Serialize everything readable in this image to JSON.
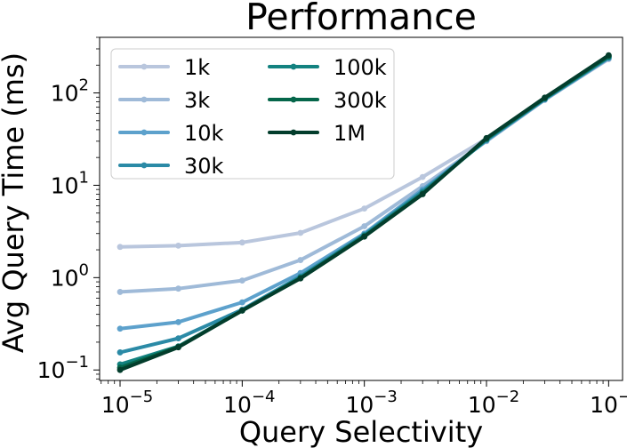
{
  "chart_data": {
    "type": "line",
    "title": "Performance",
    "xlabel": "Query Selectivity",
    "ylabel": "Avg Query Time (ms)",
    "x_scale": "log",
    "y_scale": "log",
    "xlim": [
      6.8e-06,
      0.13
    ],
    "ylim": [
      0.077,
      400
    ],
    "grid": false,
    "legend_position": "top-left",
    "legend_columns": 2,
    "x_ticks": [
      {
        "value": 1e-05,
        "base": "10",
        "exp": "−5"
      },
      {
        "value": 0.0001,
        "base": "10",
        "exp": "−4"
      },
      {
        "value": 0.001,
        "base": "10",
        "exp": "−3"
      },
      {
        "value": 0.01,
        "base": "10",
        "exp": "−2"
      },
      {
        "value": 0.1,
        "base": "10",
        "exp": "−1"
      }
    ],
    "y_ticks": [
      {
        "value": 0.1,
        "base": "10",
        "exp": "−1"
      },
      {
        "value": 1,
        "base": "10",
        "exp": "0"
      },
      {
        "value": 10,
        "base": "10",
        "exp": "1"
      },
      {
        "value": 100,
        "base": "10",
        "exp": "2"
      }
    ],
    "x": [
      1e-05,
      3e-05,
      0.0001,
      0.0003,
      0.001,
      0.003,
      0.01,
      0.03,
      0.1
    ],
    "series": [
      {
        "name": "1k",
        "color": "#b9c6dd",
        "values": [
          2.15,
          2.22,
          2.4,
          3.05,
          5.6,
          12.3,
          32,
          85,
          232
        ]
      },
      {
        "name": "3k",
        "color": "#9fbad8",
        "values": [
          0.7,
          0.76,
          0.93,
          1.55,
          3.6,
          9.8,
          30,
          84,
          235
        ]
      },
      {
        "name": "10k",
        "color": "#5da1cc",
        "values": [
          0.28,
          0.33,
          0.54,
          1.12,
          3.0,
          9.0,
          30.5,
          85,
          238
        ]
      },
      {
        "name": "30k",
        "color": "#2b8aa6",
        "values": [
          0.155,
          0.22,
          0.45,
          1.03,
          2.9,
          8.6,
          31,
          86,
          242
        ]
      },
      {
        "name": "100k",
        "color": "#138280",
        "values": [
          0.115,
          0.18,
          0.44,
          1.0,
          2.85,
          8.3,
          31.5,
          87,
          246
        ]
      },
      {
        "name": "300k",
        "color": "#05664a",
        "values": [
          0.106,
          0.178,
          0.44,
          0.99,
          2.8,
          8.1,
          32,
          88,
          250
        ]
      },
      {
        "name": "1M",
        "color": "#033d2c",
        "values": [
          0.1,
          0.176,
          0.44,
          0.98,
          2.78,
          8.0,
          32.5,
          89,
          256
        ]
      }
    ]
  }
}
